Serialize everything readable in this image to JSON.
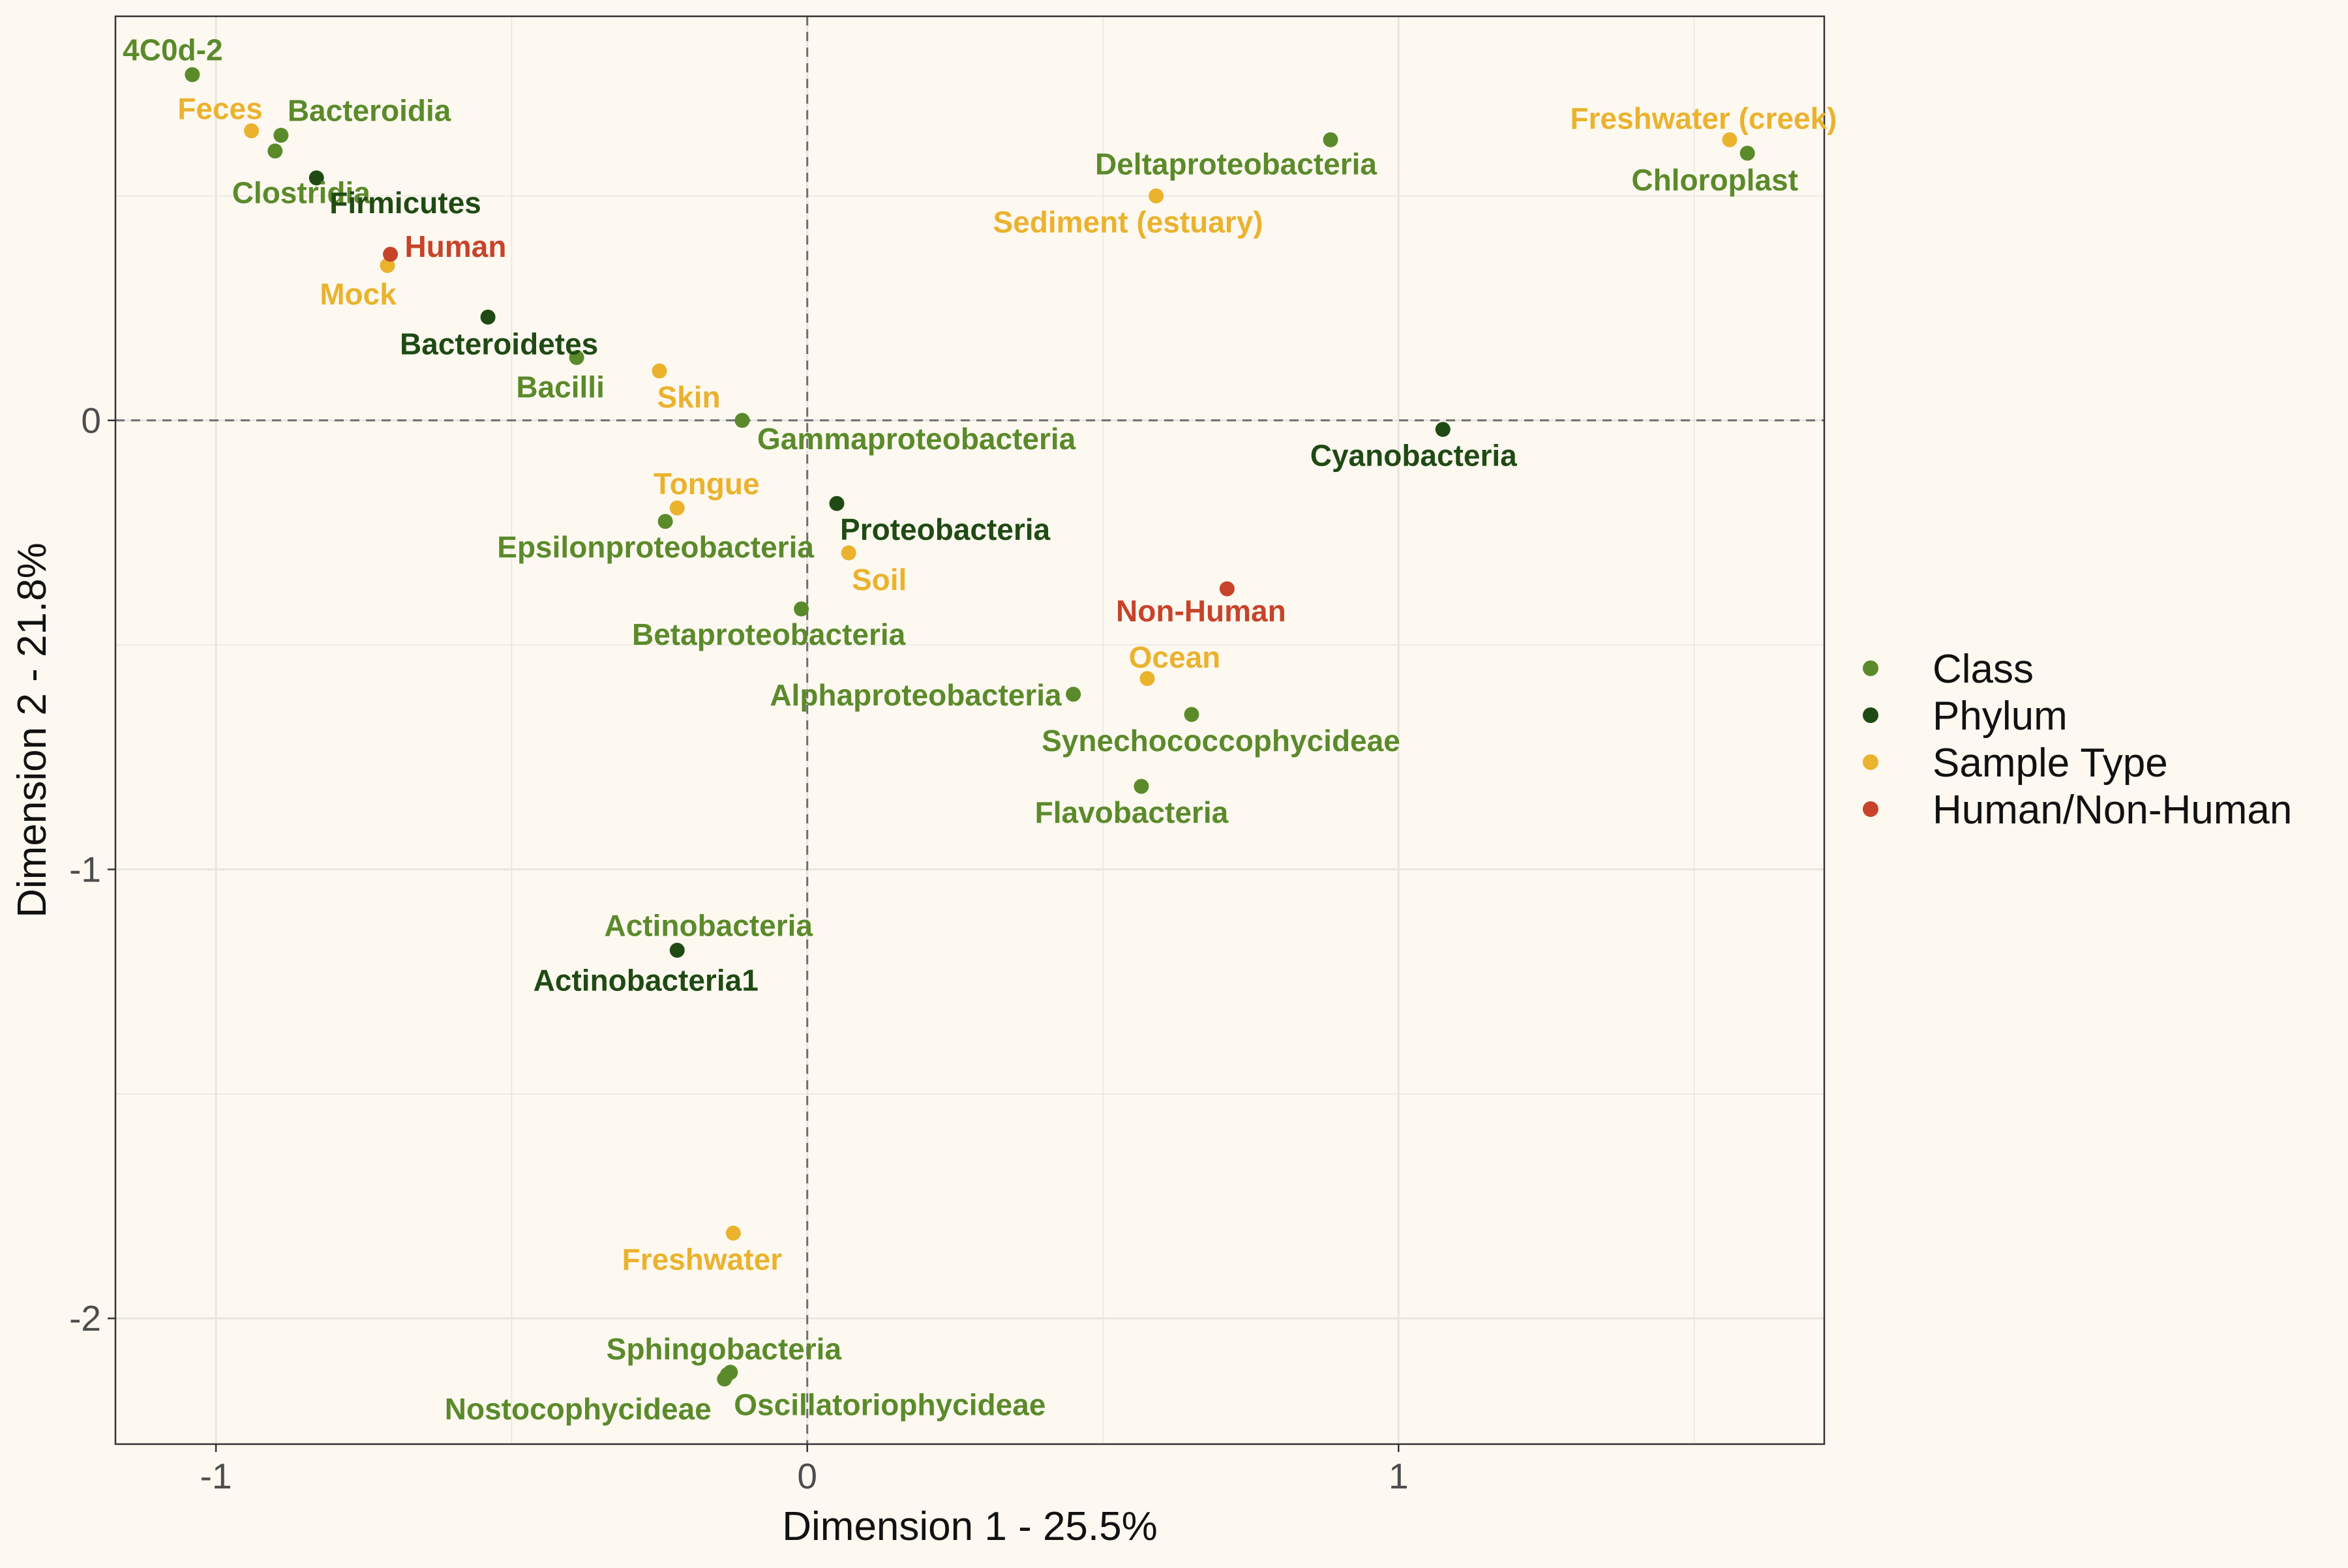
{
  "chart_data": {
    "type": "scatter",
    "xlabel": "Dimension 1 - 25.5%",
    "ylabel": "Dimension 2 - 21.8%",
    "xlim": [
      -1.17,
      1.72
    ],
    "ylim": [
      -2.28,
      0.9
    ],
    "x_ticks": [
      -1,
      0,
      1
    ],
    "x_tick_labels": [
      "-1",
      "0",
      "1"
    ],
    "y_ticks": [
      -2,
      -1,
      0
    ],
    "y_tick_labels": [
      "-2",
      "-1",
      "0"
    ],
    "grid": true,
    "reference_lines": [
      {
        "axis": "x",
        "value": 0,
        "style": "dashed"
      },
      {
        "axis": "y",
        "value": 0,
        "style": "dashed"
      }
    ],
    "legend_position": "right",
    "series": [
      {
        "name": "Class",
        "color": "#5B8A2B",
        "points": [
          {
            "label": "4C0d-2",
            "x": -1.04,
            "y": 0.77
          },
          {
            "label": "Bacteroidia",
            "x": -0.89,
            "y": 0.635
          },
          {
            "label": "Clostridia",
            "x": -0.9,
            "y": 0.6
          },
          {
            "label": "Bacilli",
            "x": -0.39,
            "y": 0.14
          },
          {
            "label": "Gammaproteobacteria",
            "x": -0.11,
            "y": 0.0
          },
          {
            "label": "Epsilonproteobacteria",
            "x": -0.24,
            "y": -0.225
          },
          {
            "label": "Betaproteobacteria",
            "x": -0.01,
            "y": -0.42
          },
          {
            "label": "Alphaproteobacteria",
            "x": 0.45,
            "y": -0.61
          },
          {
            "label": "Synechococcophycideae",
            "x": 0.65,
            "y": -0.655
          },
          {
            "label": "Flavobacteria",
            "x": 0.565,
            "y": -0.815
          },
          {
            "label": "Deltaproteobacteria",
            "x": 0.885,
            "y": 0.625
          },
          {
            "label": "Chloroplast",
            "x": 1.59,
            "y": 0.595
          },
          {
            "label": "Sphingobacteria",
            "x": -0.13,
            "y": -2.12
          },
          {
            "label": "Nostocophycideae",
            "x": -0.14,
            "y": -2.135
          },
          {
            "label": "Oscillatoriophycideae",
            "x": -0.135,
            "y": -2.125
          }
        ]
      },
      {
        "name": "Phylum",
        "color": "#1F4A14",
        "points": [
          {
            "label": "Firmicutes",
            "x": -0.83,
            "y": 0.54
          },
          {
            "label": "Bacteroidetes",
            "x": -0.54,
            "y": 0.23
          },
          {
            "label": "Proteobacteria",
            "x": 0.05,
            "y": -0.185
          },
          {
            "label": "Cyanobacteria",
            "x": 1.075,
            "y": -0.02
          },
          {
            "label": "Actinobacteria1",
            "x": -0.22,
            "y": -1.18
          }
        ]
      },
      {
        "name": "Sample Type",
        "color": "#EBB22E",
        "points": [
          {
            "label": "Feces",
            "x": -0.94,
            "y": 0.645
          },
          {
            "label": "Mock",
            "x": -0.71,
            "y": 0.345
          },
          {
            "label": "Skin",
            "x": -0.25,
            "y": 0.11
          },
          {
            "label": "Tongue",
            "x": -0.22,
            "y": -0.195
          },
          {
            "label": "Soil",
            "x": 0.07,
            "y": -0.295
          },
          {
            "label": "Ocean",
            "x": 0.575,
            "y": -0.575
          },
          {
            "label": "Sediment (estuary)",
            "x": 0.59,
            "y": 0.5
          },
          {
            "label": "Freshwater (creek)",
            "x": 1.56,
            "y": 0.625
          },
          {
            "label": "Freshwater",
            "x": -0.125,
            "y": -1.81
          }
        ]
      },
      {
        "name": "Human/Non-Human",
        "color": "#C7432A",
        "points": [
          {
            "label": "Human",
            "x": -0.705,
            "y": 0.37
          },
          {
            "label": "Non-Human",
            "x": 0.71,
            "y": -0.375
          }
        ]
      }
    ],
    "extra_labels": [
      {
        "label": "Actinobacteria",
        "x": -0.22,
        "y": -1.18,
        "series": "Class"
      }
    ]
  }
}
